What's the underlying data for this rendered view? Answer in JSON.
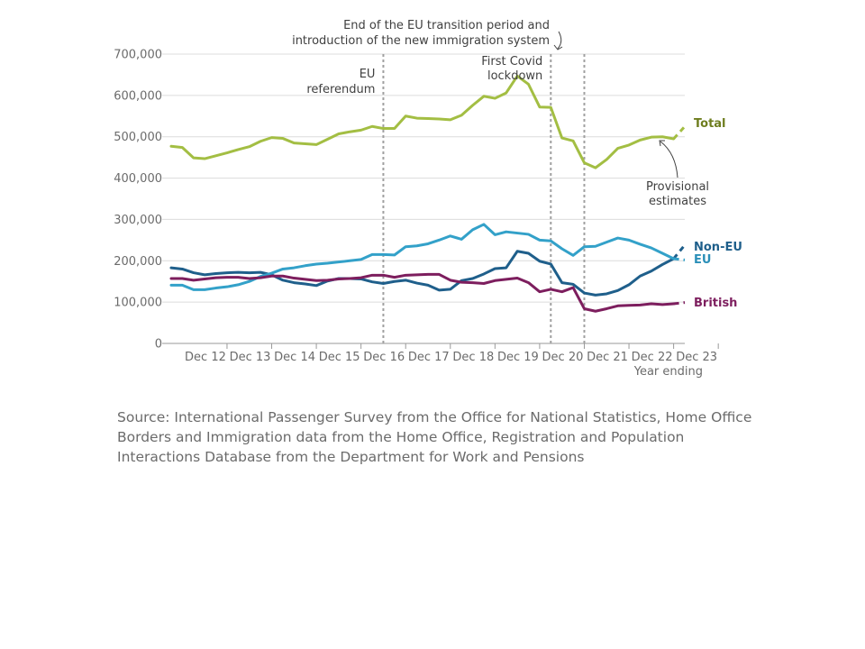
{
  "chart_data": {
    "type": "line",
    "x_ticks": [
      "Dec 12",
      "Dec 13",
      "Dec 14",
      "Dec 15",
      "Dec 16",
      "Dec 17",
      "Dec 18",
      "Dec 19",
      "Dec 20",
      "Dec 21",
      "Dec 22",
      "Dec 23"
    ],
    "xlabel": "Year ending",
    "ylabel": "",
    "ylim": [
      0,
      700000
    ],
    "y_ticks": [
      "0",
      "100,000",
      "200,000",
      "300,000",
      "400,000",
      "500,000",
      "600,000",
      "700,000"
    ],
    "grid": true,
    "x_start": "Sep 11",
    "x_step_months": 3,
    "provisional_from": "Dec 22",
    "series": [
      {
        "name": "Total",
        "color": "#a3be43",
        "label_color": "#6e7d1e",
        "values": [
          477000,
          474000,
          449000,
          447000,
          454000,
          461000,
          469000,
          476000,
          489000,
          498000,
          496000,
          485000,
          483000,
          481000,
          494000,
          507000,
          512000,
          516000,
          525000,
          520000,
          520000,
          550000,
          545000,
          544000,
          543000,
          541000,
          552000,
          576000,
          598000,
          593000,
          606000,
          647000,
          627000,
          572000,
          571000,
          497000,
          490000,
          437000,
          425000,
          445000,
          472000,
          480000,
          492000,
          499000,
          500000,
          495000,
          525000
        ]
      },
      {
        "name": "Non-EU",
        "color": "#1f5f8b",
        "label_color": "#1f5f8b",
        "values": [
          183000,
          180000,
          171000,
          166000,
          169000,
          171000,
          172000,
          171000,
          172000,
          166000,
          153000,
          147000,
          144000,
          140000,
          151000,
          157000,
          157000,
          156000,
          149000,
          145000,
          150000,
          153000,
          146000,
          141000,
          129000,
          131000,
          152000,
          157000,
          168000,
          181000,
          183000,
          223000,
          218000,
          199000,
          192000,
          147000,
          143000,
          122000,
          117000,
          120000,
          128000,
          142000,
          163000,
          175000,
          191000,
          205000,
          238000
        ]
      },
      {
        "name": "EU",
        "color": "#33a1c9",
        "label_color": "#2b8fb8",
        "values": [
          141000,
          141000,
          130000,
          130000,
          134000,
          137000,
          142000,
          150000,
          162000,
          170000,
          180000,
          183000,
          188000,
          192000,
          194000,
          197000,
          200000,
          203000,
          215000,
          215000,
          214000,
          234000,
          236000,
          241000,
          250000,
          260000,
          252000,
          275000,
          288000,
          263000,
          270000,
          267000,
          264000,
          250000,
          248000,
          229000,
          213000,
          234000,
          235000,
          245000,
          255000,
          250000,
          240000,
          231000,
          218000,
          205000,
          202000
        ]
      },
      {
        "name": "British",
        "color": "#7d1e5e",
        "label_color": "#7d1e5e",
        "values": [
          157000,
          157000,
          153000,
          156000,
          159000,
          160000,
          160000,
          157000,
          159000,
          163000,
          163000,
          158000,
          155000,
          152000,
          153000,
          156000,
          157000,
          159000,
          165000,
          165000,
          160000,
          165000,
          166000,
          167000,
          167000,
          153000,
          148000,
          147000,
          145000,
          152000,
          155000,
          158000,
          147000,
          125000,
          131000,
          125000,
          135000,
          84000,
          78000,
          84000,
          91000,
          92000,
          93000,
          96000,
          94000,
          96000,
          99000
        ]
      }
    ],
    "annotations": {
      "eu_referendum": {
        "text": [
          "EU",
          "referendum"
        ],
        "x": "Jun 16"
      },
      "first_covid_lockdown": {
        "text": [
          "First Covid",
          "lockdown"
        ],
        "x": "Mar 20"
      },
      "transition_end": {
        "text": [
          "End of the EU transition period and",
          "introduction of the new immigration system"
        ],
        "x": "Dec 20"
      },
      "provisional": {
        "text": [
          "Provisional",
          "estimates"
        ]
      }
    }
  },
  "source_text": "Source: International Passenger Survey from the Office for National Statistics, Home Office Borders and Immigration data from the Home Office, Registration and Population Interactions Database from the Department for Work and Pensions"
}
